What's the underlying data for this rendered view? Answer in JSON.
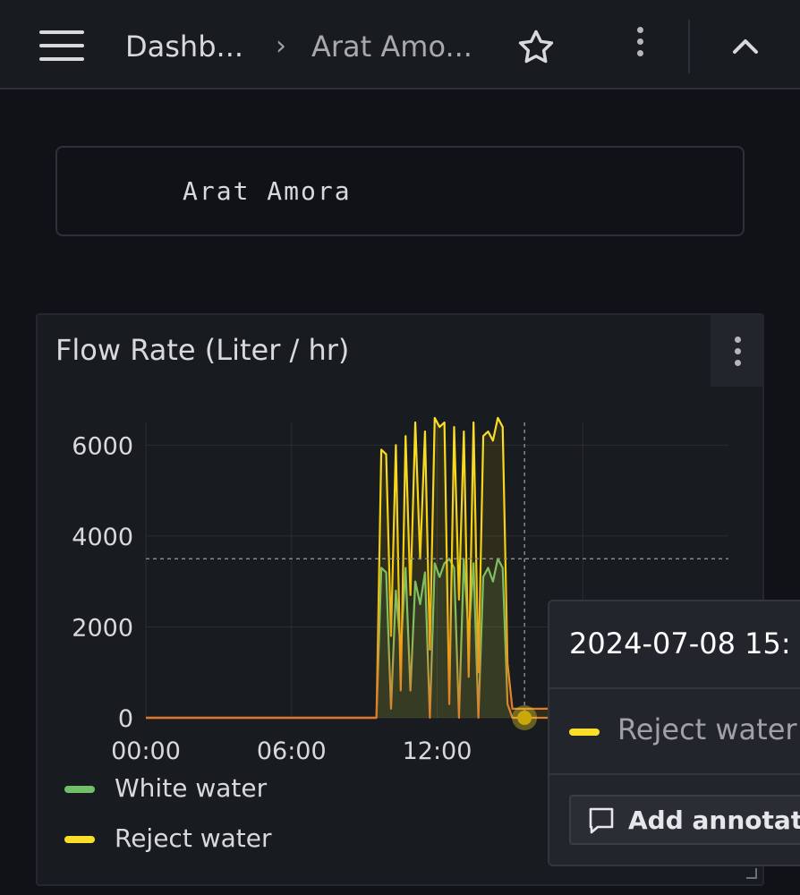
{
  "header": {
    "menu_icon": "hamburger-menu-icon",
    "breadcrumb_home": "Dashb...",
    "breadcrumb_separator": "›",
    "breadcrumb_current": "Arat Amo...",
    "star_icon": "star-icon",
    "more_icon": "vertical-dots-icon",
    "collapse_icon": "chevron-up-icon"
  },
  "text_panel": {
    "content": "Arat Amora"
  },
  "panel": {
    "title": "Flow Rate (Liter / hr)",
    "menu_icon": "vertical-dots-icon"
  },
  "chart_data": {
    "type": "line",
    "ylim": [
      0,
      6500
    ],
    "y_ticks": [
      "0",
      "2000",
      "4000",
      "6000"
    ],
    "x_ticks": [
      "00:00",
      "06:00",
      "12:00"
    ],
    "x_range_hours": [
      0,
      24
    ],
    "legend_placement": "bottom-left",
    "grid": true,
    "series": [
      {
        "name": "White water",
        "color": "#73bf69",
        "x": [
          0,
          9.5,
          9.7,
          9.9,
          10.1,
          10.3,
          10.5,
          10.7,
          10.9,
          11.1,
          11.3,
          11.5,
          11.7,
          11.9,
          12.1,
          12.3,
          12.5,
          12.7,
          12.9,
          13.1,
          13.3,
          13.5,
          13.7,
          13.9,
          14.1,
          14.3,
          14.5,
          14.7,
          14.9,
          15.1,
          15.5,
          16,
          24
        ],
        "values": [
          0,
          0,
          3300,
          3200,
          200,
          2800,
          1500,
          3300,
          600,
          3000,
          2500,
          3200,
          0,
          3400,
          3100,
          3400,
          3500,
          3300,
          0,
          3500,
          1800,
          3400,
          0,
          3100,
          3300,
          3000,
          3500,
          3300,
          300,
          0,
          0,
          0,
          0
        ]
      },
      {
        "name": "Reject water",
        "color": "#fade2a",
        "x": [
          0,
          9.5,
          9.7,
          9.9,
          10.1,
          10.3,
          10.5,
          10.7,
          10.9,
          11.1,
          11.3,
          11.5,
          11.7,
          11.9,
          12.1,
          12.3,
          12.5,
          12.7,
          12.9,
          13.1,
          13.3,
          13.5,
          13.7,
          13.9,
          14.1,
          14.3,
          14.5,
          14.7,
          14.9,
          15.1,
          15.5,
          16,
          24
        ],
        "values": [
          0,
          0,
          5900,
          5800,
          1800,
          6000,
          600,
          6200,
          2700,
          6500,
          3500,
          6300,
          1500,
          6600,
          6400,
          6500,
          300,
          6400,
          2600,
          6300,
          900,
          6500,
          1000,
          6200,
          6300,
          6100,
          6600,
          6400,
          1200,
          200,
          200,
          200,
          200
        ]
      }
    ],
    "crosshair_x_hours": 15.6,
    "crosshair_y": 3500
  },
  "tooltip": {
    "time": "2024-07-08 15:",
    "series_name": "Reject water",
    "annotation_button": "Add annotation",
    "annotation_icon": "comment-icon"
  }
}
